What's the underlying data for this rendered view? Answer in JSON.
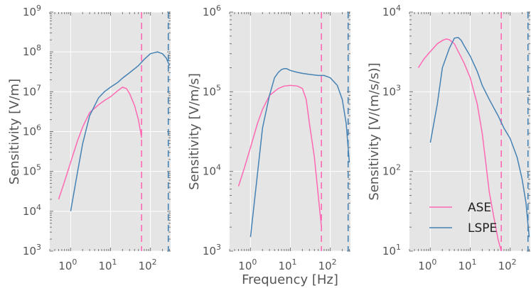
{
  "chart_data": {
    "type": "line",
    "xlabel": "Frequency [Hz]",
    "xscale": "log",
    "yscale": "log",
    "legend": {
      "placement": "lower-right",
      "entries": [
        "ASE",
        "LSPE"
      ],
      "in_panel": 2
    },
    "colors": {
      "ASE": "#ff69b4",
      "LSPE": "#4682b4",
      "background": "#e5e5e5",
      "grid": "#ffffff"
    },
    "xticks": [
      {
        "base": "10",
        "exp": "0",
        "value": 1
      },
      {
        "base": "10",
        "exp": "1",
        "value": 10
      },
      {
        "base": "10",
        "exp": "2",
        "value": 100
      }
    ],
    "panels": [
      {
        "ylabel": "Sensitivity [V/m]",
        "xlim": [
          0.3,
          320
        ],
        "ylim": [
          1000,
          1000000000
        ],
        "yticks": [
          {
            "base": "10",
            "exp": "3",
            "value": 1000
          },
          {
            "base": "10",
            "exp": "4",
            "value": 10000
          },
          {
            "base": "10",
            "exp": "5",
            "value": 100000
          },
          {
            "base": "10",
            "exp": "6",
            "value": 1000000
          },
          {
            "base": "10",
            "exp": "7",
            "value": 10000000
          },
          {
            "base": "10",
            "exp": "8",
            "value": 100000000
          },
          {
            "base": "10",
            "exp": "9",
            "value": 1000000000
          }
        ],
        "vlines": [
          {
            "series": "ASE",
            "x": 60
          },
          {
            "series": "LSPE",
            "x": 280
          }
        ],
        "series": [
          {
            "name": "ASE",
            "x": [
              0.5,
              0.7,
              1,
              1.5,
              2,
              3,
              5,
              7,
              10,
              15,
              20,
              25,
              30,
              40,
              50,
              60
            ],
            "y": [
              20000,
              55000,
              170000,
              600000,
              1300000,
              3000000,
              4700000,
              6000000,
              7500000,
              10500000,
              13000000,
              12000000,
              9000000,
              4500000,
              2000000,
              700000
            ]
          },
          {
            "name": "LSPE",
            "x": [
              1,
              1.5,
              2,
              3,
              4,
              5,
              7,
              10,
              15,
              20,
              30,
              50,
              70,
              100,
              150,
              200,
              250,
              300
            ],
            "y": [
              10000,
              100000,
              500000,
              2500000,
              4500000,
              7000000,
              10000000,
              13000000,
              17000000,
              22000000,
              30000000,
              45000000,
              65000000,
              90000000,
              100000000,
              90000000,
              70000000,
              45000000
            ]
          }
        ]
      },
      {
        "ylabel": "Sensitivity [V/m/s]",
        "xlim": [
          0.3,
          320
        ],
        "ylim": [
          1000,
          1000000
        ],
        "yticks": [
          {
            "base": "10",
            "exp": "3",
            "value": 1000
          },
          {
            "base": "10",
            "exp": "4",
            "value": 10000
          },
          {
            "base": "10",
            "exp": "5",
            "value": 100000
          },
          {
            "base": "10",
            "exp": "6",
            "value": 1000000
          }
        ],
        "vlines": [
          {
            "series": "ASE",
            "x": 60
          },
          {
            "series": "LSPE",
            "x": 280
          }
        ],
        "series": [
          {
            "name": "ASE",
            "x": [
              0.5,
              0.7,
              1,
              1.5,
              2,
              3,
              5,
              7,
              10,
              15,
              20,
              25,
              30,
              40,
              50,
              60
            ],
            "y": [
              6500,
              11000,
              20000,
              40000,
              60000,
              90000,
              110000,
              118000,
              120000,
              118000,
              110000,
              80000,
              40000,
              15000,
              5000,
              2000
            ]
          },
          {
            "name": "LSPE",
            "x": [
              1,
              2,
              3,
              4,
              5,
              6,
              7,
              8,
              10,
              15,
              20,
              30,
              50,
              70,
              100,
              150,
              200,
              250,
              300
            ],
            "y": [
              1500,
              35000,
              90000,
              150000,
              175000,
              190000,
              195000,
              195000,
              185000,
              175000,
              170000,
              165000,
              160000,
              160000,
              150000,
              120000,
              80000,
              40000,
              13000
            ]
          }
        ]
      },
      {
        "ylabel": "Sensitivity [V/(m/s/s)]",
        "xlim": [
          0.3,
          320
        ],
        "ylim": [
          10,
          10000
        ],
        "yticks": [
          {
            "base": "10",
            "exp": "1",
            "value": 10
          },
          {
            "base": "10",
            "exp": "2",
            "value": 100
          },
          {
            "base": "10",
            "exp": "3",
            "value": 1000
          },
          {
            "base": "10",
            "exp": "4",
            "value": 10000
          }
        ],
        "vlines": [
          {
            "series": "ASE",
            "x": 60
          },
          {
            "series": "LSPE",
            "x": 280
          }
        ],
        "series": [
          {
            "name": "ASE",
            "x": [
              0.5,
              0.7,
              1,
              1.5,
              2,
              2.5,
              3,
              4,
              5,
              7,
              10,
              15,
              20,
              25,
              30,
              40,
              50,
              60
            ],
            "y": [
              2000,
              2600,
              3200,
              4000,
              4400,
              4600,
              4500,
              4000,
              3200,
              2300,
              1500,
              700,
              300,
              120,
              55,
              25,
              14,
              10
            ]
          },
          {
            "name": "LSPE",
            "x": [
              1,
              1.5,
              2,
              3,
              4,
              5,
              6,
              7,
              10,
              15,
              20,
              30,
              50,
              70,
              100,
              150,
              200,
              250,
              300
            ],
            "y": [
              230,
              700,
              2000,
              3500,
              4700,
              4800,
              4400,
              3800,
              2800,
              1800,
              1200,
              800,
              500,
              350,
              260,
              150,
              80,
              40,
              15
            ]
          }
        ]
      }
    ]
  }
}
